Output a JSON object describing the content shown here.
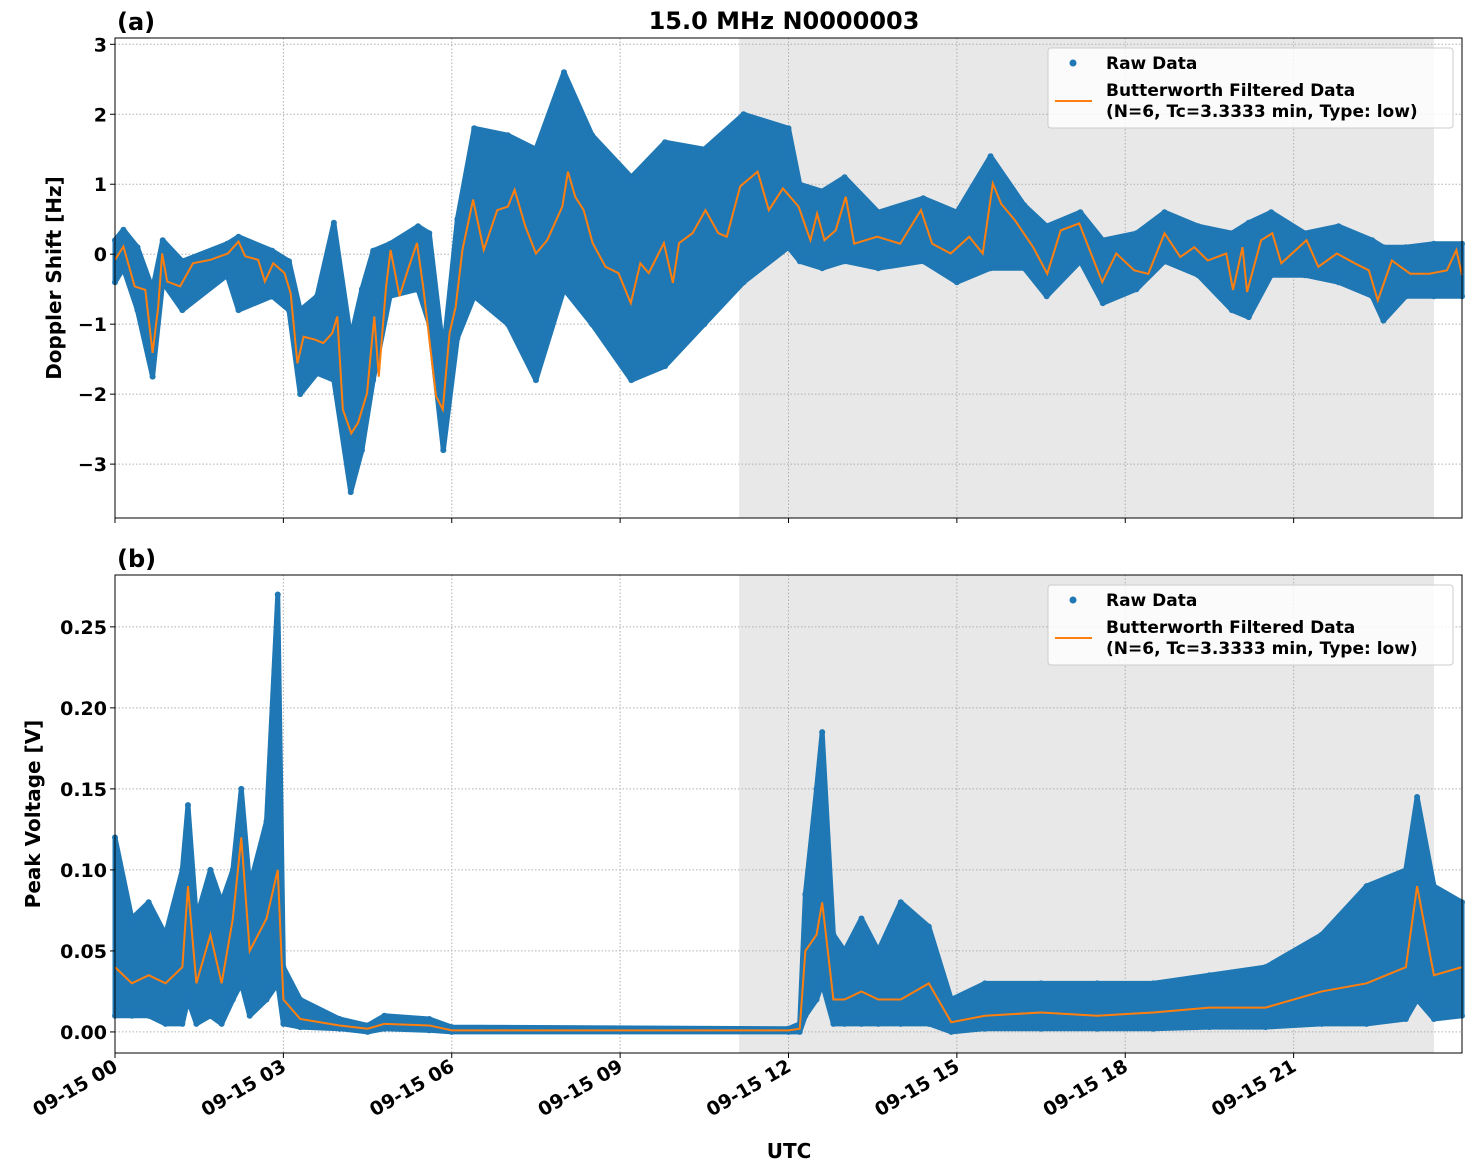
{
  "title": "15.0 MHz N0000003",
  "xlabel": "UTC",
  "colors": {
    "raw": "#1f77b4",
    "filtered": "#ff7f0e",
    "shade": "#e8e8e8"
  },
  "chart_data": [
    {
      "type": "scatter",
      "panel_label": "(a)",
      "ylabel": "Doppler Shift [Hz]",
      "xlim_hours_utc": [
        0,
        24
      ],
      "ylim": [
        -3.77,
        3.09
      ],
      "x_ticks": [
        "09-15 00",
        "09-15 03",
        "09-15 06",
        "09-15 09",
        "09-15 12",
        "09-15 15",
        "09-15 18",
        "09-15 21"
      ],
      "x_tick_hours": [
        0,
        3,
        6,
        9,
        12,
        15,
        18,
        21
      ],
      "y_ticks": [
        3,
        2,
        1,
        0,
        -1,
        -2,
        -3
      ],
      "y_tick_labels": [
        "3",
        "2",
        "1",
        "0",
        "−1",
        "−2",
        "−3"
      ],
      "grid": true,
      "shaded_region_hours": [
        11.12,
        23.5
      ],
      "legend": {
        "placement": "top-right",
        "entries": [
          "Raw Data",
          "Butterworth Filtered Data",
          "(N=6, Tc=3.3333 min, Type: low)"
        ]
      },
      "raw_envelope": {
        "hours": [
          0,
          0.15,
          0.4,
          0.67,
          0.85,
          1.2,
          2.0,
          2.2,
          2.8,
          3.1,
          3.3,
          3.6,
          3.9,
          4.2,
          4.4,
          4.6,
          4.9,
          5.4,
          5.6,
          5.85,
          6.1,
          6.4,
          7.0,
          7.5,
          8.0,
          8.5,
          9.2,
          9.8,
          10.5,
          11.2,
          12.0,
          12.2,
          12.6,
          13.0,
          13.6,
          14.4,
          15.0,
          15.6,
          16.2,
          16.6,
          17.2,
          17.6,
          18.2,
          18.7,
          19.3,
          19.9,
          20.2,
          20.6,
          21.2,
          21.8,
          22.4,
          22.6,
          23.0,
          23.5,
          24.0
        ],
        "low": [
          -0.4,
          -0.2,
          -0.8,
          -1.75,
          -0.4,
          -0.8,
          -0.3,
          -0.8,
          -0.6,
          -0.8,
          -2.0,
          -1.7,
          -1.8,
          -3.4,
          -2.8,
          -1.8,
          -0.6,
          -0.5,
          -1.0,
          -2.8,
          -1.2,
          -0.6,
          -1.0,
          -1.8,
          -0.5,
          -1.0,
          -1.8,
          -1.6,
          -1.0,
          -0.4,
          0.1,
          -0.1,
          -0.2,
          -0.1,
          -0.2,
          -0.1,
          -0.4,
          -0.2,
          -0.2,
          -0.6,
          -0.1,
          -0.7,
          -0.5,
          -0.1,
          -0.3,
          -0.8,
          -0.9,
          -0.3,
          -0.3,
          -0.4,
          -0.6,
          -0.95,
          -0.6,
          -0.6,
          -0.6
        ],
        "high": [
          0.2,
          0.35,
          0.1,
          -0.5,
          0.2,
          -0.1,
          0.15,
          0.25,
          0.05,
          -0.1,
          -0.8,
          -0.6,
          0.45,
          -1.2,
          -0.5,
          0.05,
          0.15,
          0.4,
          0.3,
          -1.4,
          0.5,
          1.8,
          1.7,
          1.5,
          2.6,
          1.7,
          1.1,
          1.6,
          1.5,
          2.0,
          1.8,
          1.0,
          0.9,
          1.1,
          0.6,
          0.8,
          0.6,
          1.4,
          0.7,
          0.4,
          0.6,
          0.2,
          0.3,
          0.6,
          0.4,
          0.3,
          0.45,
          0.6,
          0.3,
          0.4,
          0.2,
          0.1,
          0.1,
          0.15,
          0.15
        ]
      },
      "filtered": {
        "hours": [
          0,
          0.15,
          0.35,
          0.54,
          0.67,
          0.77,
          0.84,
          0.93,
          1.16,
          1.39,
          1.7,
          2.01,
          2.2,
          2.32,
          2.55,
          2.67,
          2.82,
          3.02,
          3.13,
          3.25,
          3.36,
          3.56,
          3.71,
          3.87,
          3.96,
          4.06,
          4.21,
          4.33,
          4.49,
          4.62,
          4.7,
          4.83,
          4.91,
          5.07,
          5.22,
          5.38,
          5.49,
          5.72,
          5.84,
          5.96,
          6.07,
          6.19,
          6.38,
          6.57,
          6.81,
          7.0,
          7.12,
          7.31,
          7.5,
          7.7,
          7.97,
          8.07,
          8.2,
          8.35,
          8.51,
          8.74,
          8.97,
          9.19,
          9.36,
          9.51,
          9.78,
          9.94,
          10.05,
          10.29,
          10.52,
          10.75,
          10.9,
          11.14,
          11.45,
          11.65,
          11.9,
          12.18,
          12.39,
          12.51,
          12.64,
          12.84,
          13.02,
          13.17,
          13.58,
          13.99,
          14.36,
          14.56,
          14.89,
          15.22,
          15.46,
          15.64,
          15.79,
          16.03,
          16.36,
          16.61,
          16.85,
          17.18,
          17.59,
          17.84,
          18.16,
          18.41,
          18.7,
          18.98,
          19.23,
          19.47,
          19.8,
          19.92,
          20.09,
          20.17,
          20.42,
          20.62,
          20.78,
          21.23,
          21.44,
          21.77,
          22.09,
          22.34,
          22.5,
          22.75,
          23.08,
          23.41,
          23.73,
          23.9,
          24.0
        ],
        "values": [
          -0.08,
          0.11,
          -0.46,
          -0.51,
          -1.41,
          -0.75,
          0.01,
          -0.39,
          -0.46,
          -0.13,
          -0.08,
          0.01,
          0.18,
          -0.03,
          -0.08,
          -0.39,
          -0.13,
          -0.27,
          -0.56,
          -1.56,
          -1.18,
          -1.22,
          -1.27,
          -1.13,
          -0.89,
          -2.22,
          -2.56,
          -2.41,
          -1.99,
          -0.89,
          -1.75,
          -0.46,
          0.06,
          -0.6,
          -0.22,
          0.16,
          -0.46,
          -2.03,
          -2.22,
          -1.13,
          -0.75,
          0.06,
          0.78,
          0.06,
          0.63,
          0.68,
          0.92,
          0.4,
          0.01,
          0.2,
          0.68,
          1.18,
          0.82,
          0.63,
          0.16,
          -0.18,
          -0.27,
          -0.7,
          -0.13,
          -0.27,
          0.16,
          -0.41,
          0.16,
          0.3,
          0.63,
          0.3,
          0.25,
          0.97,
          1.18,
          0.63,
          0.94,
          0.68,
          0.2,
          0.58,
          0.2,
          0.34,
          0.82,
          0.15,
          0.25,
          0.15,
          0.63,
          0.15,
          0.01,
          0.25,
          0.01,
          1.01,
          0.72,
          0.49,
          0.1,
          -0.28,
          0.34,
          0.44,
          -0.4,
          0.01,
          -0.23,
          -0.28,
          0.3,
          -0.04,
          0.1,
          -0.09,
          0.01,
          -0.51,
          0.1,
          -0.54,
          0.2,
          0.3,
          -0.13,
          0.2,
          -0.18,
          0.01,
          -0.13,
          -0.23,
          -0.66,
          -0.09,
          -0.28,
          -0.28,
          -0.23,
          0.06,
          -0.3
        ]
      }
    },
    {
      "type": "scatter",
      "panel_label": "(b)",
      "ylabel": "Peak Voltage [V]",
      "xlim_hours_utc": [
        0,
        24
      ],
      "ylim": [
        -0.013,
        0.282
      ],
      "x_ticks": [
        "09-15 00",
        "09-15 03",
        "09-15 06",
        "09-15 09",
        "09-15 12",
        "09-15 15",
        "09-15 18",
        "09-15 21"
      ],
      "x_tick_hours": [
        0,
        3,
        6,
        9,
        12,
        15,
        18,
        21
      ],
      "y_ticks": [
        0,
        0.05,
        0.1,
        0.15,
        0.2,
        0.25
      ],
      "y_tick_labels": [
        "0.00",
        "0.05",
        "0.10",
        "0.15",
        "0.20",
        "0.25"
      ],
      "grid": true,
      "shaded_region_hours": [
        11.12,
        23.5
      ],
      "legend": {
        "placement": "top-right",
        "entries": [
          "Raw Data",
          "Butterworth Filtered Data",
          "(N=6, Tc=3.3333 min, Type: low)"
        ]
      },
      "raw_envelope": {
        "hours": [
          0,
          0.3,
          0.6,
          0.9,
          1.2,
          1.3,
          1.45,
          1.7,
          1.9,
          2.1,
          2.25,
          2.4,
          2.7,
          2.9,
          3.0,
          3.3,
          4.0,
          4.5,
          4.8,
          5.6,
          6.0,
          12.0,
          12.2,
          12.3,
          12.5,
          12.6,
          12.8,
          13.0,
          13.3,
          13.6,
          14.0,
          14.5,
          14.9,
          15.5,
          16.5,
          17.5,
          18.5,
          19.5,
          20.5,
          21.5,
          22.3,
          23.0,
          23.2,
          23.5,
          24.0
        ],
        "low": [
          0.01,
          0.01,
          0.01,
          0.005,
          0.005,
          0.02,
          0.005,
          0.01,
          0.005,
          0.02,
          0.03,
          0.01,
          0.02,
          0.03,
          0.005,
          0.003,
          0.002,
          0,
          0.002,
          0.001,
          0,
          0,
          0,
          0.01,
          0.02,
          0.03,
          0.005,
          0.005,
          0.005,
          0.005,
          0.005,
          0.005,
          0,
          0.002,
          0.002,
          0.002,
          0.002,
          0.003,
          0.003,
          0.005,
          0.005,
          0.008,
          0.02,
          0.008,
          0.01
        ],
        "high": [
          0.12,
          0.07,
          0.08,
          0.06,
          0.1,
          0.14,
          0.07,
          0.1,
          0.08,
          0.1,
          0.15,
          0.09,
          0.13,
          0.27,
          0.04,
          0.02,
          0.008,
          0.004,
          0.01,
          0.008,
          0.003,
          0.002,
          0.005,
          0.085,
          0.15,
          0.185,
          0.06,
          0.05,
          0.07,
          0.05,
          0.08,
          0.065,
          0.02,
          0.03,
          0.03,
          0.03,
          0.03,
          0.035,
          0.04,
          0.06,
          0.09,
          0.1,
          0.145,
          0.09,
          0.08
        ]
      },
      "filtered": {
        "hours": [
          0,
          0.3,
          0.6,
          0.9,
          1.2,
          1.3,
          1.45,
          1.7,
          1.9,
          2.1,
          2.25,
          2.4,
          2.7,
          2.9,
          3.0,
          3.3,
          4.0,
          4.5,
          4.8,
          5.6,
          6.0,
          12.0,
          12.2,
          12.3,
          12.5,
          12.6,
          12.8,
          13.0,
          13.3,
          13.6,
          14.0,
          14.5,
          14.9,
          15.5,
          16.5,
          17.5,
          18.5,
          19.5,
          20.5,
          21.5,
          22.3,
          23.0,
          23.2,
          23.5,
          24.0
        ],
        "values": [
          0.04,
          0.03,
          0.035,
          0.03,
          0.04,
          0.09,
          0.03,
          0.06,
          0.03,
          0.07,
          0.12,
          0.05,
          0.07,
          0.1,
          0.02,
          0.008,
          0.004,
          0.002,
          0.005,
          0.004,
          0.001,
          0.001,
          0.002,
          0.05,
          0.06,
          0.08,
          0.02,
          0.02,
          0.025,
          0.02,
          0.02,
          0.03,
          0.006,
          0.01,
          0.012,
          0.01,
          0.012,
          0.015,
          0.015,
          0.025,
          0.03,
          0.04,
          0.09,
          0.035,
          0.04
        ]
      }
    }
  ]
}
